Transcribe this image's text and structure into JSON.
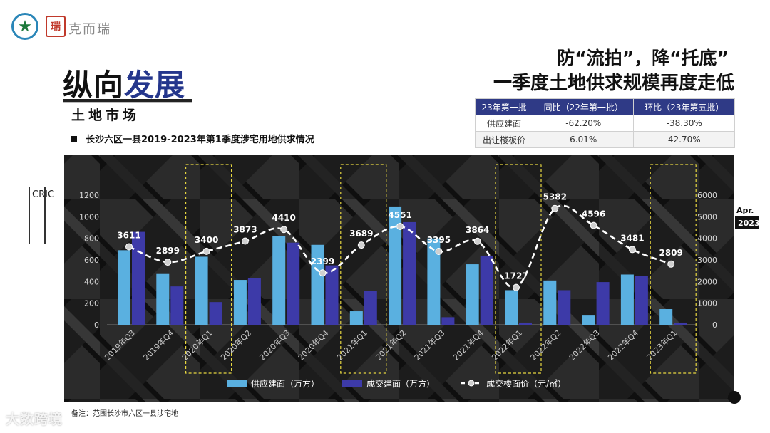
{
  "header": {
    "brand": "克而瑞",
    "seal_text": "瑞",
    "title_black": "纵向",
    "title_blue": "发展",
    "subtitle": "土地市场",
    "chart_caption": "长沙六区一县2019-2023年第1季度涉宅用地供求情况",
    "headline_1": "防“流拍”，降“托底”",
    "headline_2": "一季度土地供求规模再度走低",
    "side_mark": "CRIC"
  },
  "summary_table": {
    "headers": [
      "23年第一批",
      "同比（22年第一批）",
      "环比（23年第五批）"
    ],
    "rows": [
      [
        "供应建面",
        "-62.20%",
        "-38.30%"
      ],
      [
        "出让楼板价",
        "6.01%",
        "42.70%"
      ]
    ]
  },
  "chart_data": {
    "type": "bar",
    "categories": [
      "2019年Q3",
      "2019年Q4",
      "2020年Q1",
      "2020年Q2",
      "2020年Q3",
      "2020年Q4",
      "2021年Q1",
      "2021年Q2",
      "2021年Q3",
      "2021年Q4",
      "2022年Q1",
      "2022年Q2",
      "2022年Q3",
      "2022年Q4",
      "2023年Q1"
    ],
    "series": [
      {
        "name": "供应建面（万方）",
        "kind": "bar",
        "axis": "left",
        "color": "#5ab0e0",
        "values": [
          690,
          470,
          630,
          415,
          820,
          740,
          125,
          1095,
          800,
          560,
          320,
          410,
          85,
          465,
          145
        ]
      },
      {
        "name": "成交建面（万方）",
        "kind": "bar",
        "axis": "left",
        "color": "#3d3aa8",
        "values": [
          860,
          355,
          210,
          435,
          760,
          550,
          315,
          950,
          70,
          640,
          20,
          320,
          395,
          455,
          20
        ]
      },
      {
        "name": "成交楼面价（元/㎡）",
        "kind": "line",
        "axis": "right",
        "color": "#ffffff",
        "values": [
          3611,
          2899,
          3400,
          3873,
          4410,
          2399,
          3689,
          4551,
          3395,
          3864,
          1727,
          5382,
          4596,
          3481,
          2809
        ]
      }
    ],
    "point_labels": [
      "3611",
      "2899",
      "3400",
      "3873",
      "4410",
      "2399",
      "3689",
      "4551",
      "3395",
      "3864",
      "1727",
      "5382",
      "4596",
      "3481",
      "2809"
    ],
    "ylim_left": [
      0,
      1200
    ],
    "yticks_left": [
      "0",
      "200",
      "400",
      "600",
      "800",
      "1000",
      "1200"
    ],
    "ylim_right": [
      0,
      6000
    ],
    "yticks_right": [
      "0",
      "1000",
      "2000",
      "3000",
      "4000",
      "5000",
      "6000"
    ],
    "highlighted_quarters": [
      "2020年Q1",
      "2021年Q1",
      "2022年Q1",
      "2023年Q1"
    ],
    "legend": [
      "供应建面（万方）",
      "成交建面（万方）",
      "成交楼面价（元/㎡）"
    ],
    "legend_position": "bottom",
    "corner_label": [
      "Apr.",
      "2023"
    ]
  },
  "footnote": "备注：范围长沙市六区一县涉宅地",
  "watermark": "大数跨境"
}
